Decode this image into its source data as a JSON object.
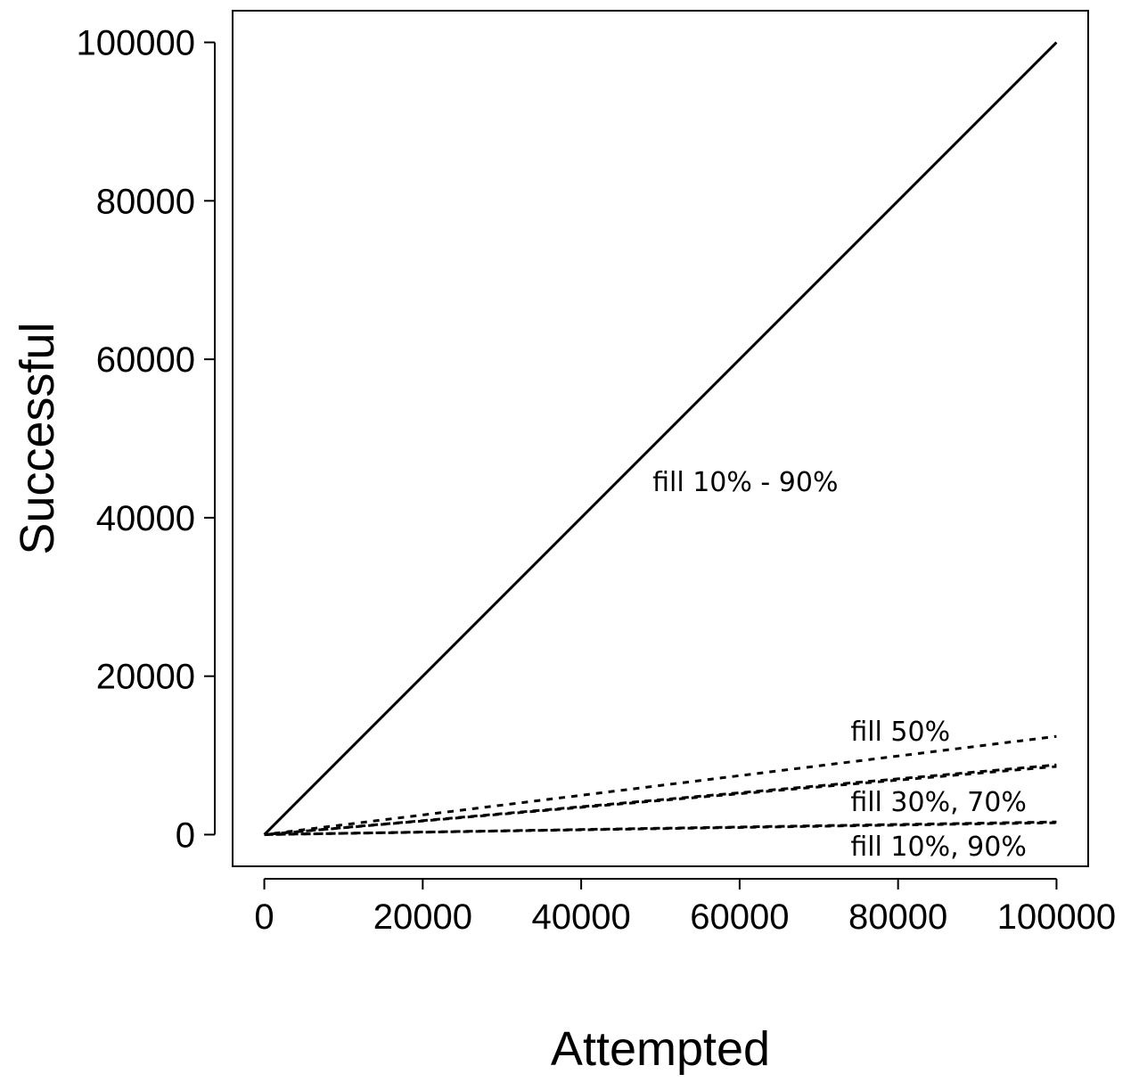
{
  "chart_data": {
    "type": "line",
    "title": "",
    "xlabel": "Attempted",
    "ylabel": "Successful",
    "xlim": [
      -4000,
      104000
    ],
    "ylim": [
      -4000,
      104000
    ],
    "xticks": [
      0,
      20000,
      40000,
      60000,
      80000,
      100000
    ],
    "yticks": [
      0,
      20000,
      40000,
      60000,
      80000,
      100000
    ],
    "grid": false,
    "legend": "none",
    "series": [
      {
        "x": [
          0,
          100000
        ],
        "y": [
          0,
          100000
        ],
        "style": "solid"
      },
      {
        "x": [
          0,
          100000
        ],
        "y": [
          0,
          12400
        ],
        "style": "dashed"
      },
      {
        "x": [
          0,
          100000
        ],
        "y": [
          0,
          8800
        ],
        "style": "dashed"
      },
      {
        "x": [
          0,
          100000
        ],
        "y": [
          0,
          8600
        ],
        "style": "dashed"
      },
      {
        "x": [
          0,
          100000
        ],
        "y": [
          0,
          1600
        ],
        "style": "dashed"
      },
      {
        "x": [
          0,
          100000
        ],
        "y": [
          0,
          1500
        ],
        "style": "dashed"
      }
    ],
    "annotations": [
      {
        "text": "fill 10% - 90%",
        "x": 49000,
        "y": 44500
      },
      {
        "text": "fill 50%",
        "x": 74000,
        "y": 13000
      },
      {
        "text": "fill 30%, 70%",
        "x": 74000,
        "y": 4100
      },
      {
        "text": "fill 10%, 90%",
        "x": 74000,
        "y": -1500
      }
    ]
  }
}
